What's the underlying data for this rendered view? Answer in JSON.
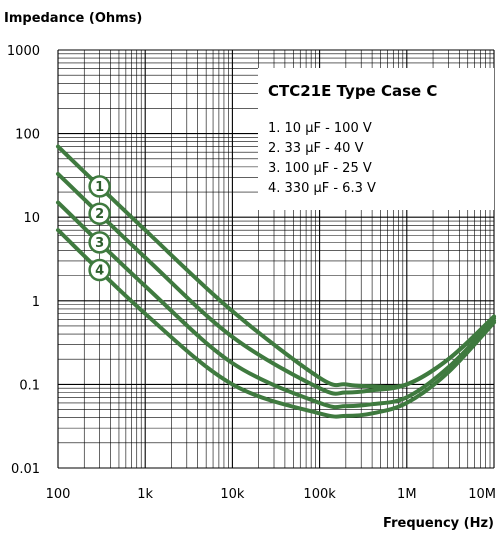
{
  "chart_data": {
    "type": "line",
    "title": "CTC21E Type Case C",
    "xlabel": "Frequency (Hz)",
    "ylabel": "Impedance (Ohms)",
    "x_scale": "log",
    "y_scale": "log",
    "xlim": [
      100,
      10000000
    ],
    "ylim": [
      0.01,
      1000
    ],
    "x_ticks": [
      100,
      1000,
      10000,
      100000,
      1000000,
      10000000
    ],
    "x_tick_labels": [
      "100",
      "1k",
      "10k",
      "100k",
      "1M",
      "10M"
    ],
    "y_ticks": [
      1000,
      100,
      10,
      1,
      0.1,
      0.01
    ],
    "y_tick_labels": [
      "1000",
      "100",
      "10",
      "1",
      "0.1",
      "0.01"
    ],
    "grid": true,
    "legend_position": "top-right",
    "line_color": "#3f7a3f",
    "series": [
      {
        "marker": "1",
        "legend": "1.  10  µF - 100  V",
        "x": [
          100,
          1000,
          10000,
          100000,
          200000,
          400000,
          1000000,
          3000000,
          10000000
        ],
        "y": [
          70,
          7,
          0.75,
          0.12,
          0.1,
          0.095,
          0.1,
          0.2,
          0.65
        ]
      },
      {
        "marker": "2",
        "legend": "2.  33  µF - 40   V",
        "x": [
          100,
          1000,
          10000,
          100000,
          200000,
          400000,
          1000000,
          3000000,
          10000000
        ],
        "y": [
          33,
          3.3,
          0.37,
          0.09,
          0.08,
          0.085,
          0.1,
          0.2,
          0.62
        ]
      },
      {
        "marker": "3",
        "legend": "3. 100  µF - 25   V",
        "x": [
          100,
          1000,
          10000,
          100000,
          200000,
          400000,
          1000000,
          3000000,
          10000000
        ],
        "y": [
          15,
          1.5,
          0.18,
          0.06,
          0.055,
          0.058,
          0.07,
          0.16,
          0.58
        ]
      },
      {
        "marker": "4",
        "legend": "4. 330  µF - 6.3  V",
        "x": [
          100,
          1000,
          10000,
          100000,
          200000,
          400000,
          1000000,
          3000000,
          10000000
        ],
        "y": [
          7,
          0.7,
          0.1,
          0.045,
          0.042,
          0.045,
          0.06,
          0.14,
          0.55
        ]
      }
    ]
  }
}
